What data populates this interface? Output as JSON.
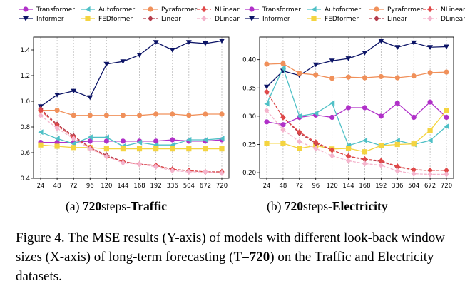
{
  "x_ticks": [
    "24",
    "48",
    "72",
    "96",
    "120",
    "144",
    "168",
    "192",
    "336",
    "504",
    "672",
    "720"
  ],
  "subcaptions": [
    {
      "prefix": "(a)",
      "bold1": "720",
      "mid": "steps-",
      "bold2": "Traffic"
    },
    {
      "prefix": "(b)",
      "bold1": "720",
      "mid": "steps-",
      "bold2": "Electricity"
    }
  ],
  "figure_caption": {
    "part1": "Figure 4. The MSE results (Y-axis) of models with different look-back window sizes (X-axis) of long-term forecasting (T=",
    "bold": "720",
    "part2": ") on the Traffic and Electricity datasets."
  },
  "chart_data": [
    {
      "type": "line",
      "title": "",
      "xlabel": "",
      "ylabel": "",
      "categories": [
        "24",
        "48",
        "72",
        "96",
        "120",
        "144",
        "168",
        "192",
        "336",
        "504",
        "672",
        "720"
      ],
      "ylim": [
        0.4,
        1.5
      ],
      "yticks": [
        "0.4",
        "0.6",
        "0.8",
        "1.0",
        "1.2",
        "1.4"
      ],
      "grid": "vertical dashed",
      "legend": "top",
      "series": [
        {
          "name": "Transformer",
          "color": "#b030c8",
          "marker": "circle",
          "dashed": false,
          "values": [
            0.68,
            0.68,
            0.68,
            0.69,
            0.69,
            0.69,
            0.69,
            0.69,
            0.7,
            0.69,
            0.69,
            0.7
          ]
        },
        {
          "name": "Informer",
          "color": "#0c1466",
          "marker": "triangle-down",
          "dashed": false,
          "values": [
            0.96,
            1.05,
            1.08,
            1.03,
            1.29,
            1.31,
            1.36,
            1.46,
            1.4,
            1.46,
            1.45,
            1.47
          ]
        },
        {
          "name": "Autoformer",
          "color": "#4fc0c6",
          "marker": "triangle-left",
          "dashed": false,
          "values": [
            0.76,
            0.71,
            0.67,
            0.72,
            0.72,
            0.65,
            0.68,
            0.66,
            0.66,
            0.7,
            0.7,
            0.71
          ]
        },
        {
          "name": "FEDformer",
          "color": "#f4d440",
          "marker": "square",
          "dashed": false,
          "values": [
            0.66,
            0.65,
            0.64,
            0.64,
            0.63,
            0.63,
            0.63,
            0.63,
            0.63,
            0.63,
            0.63,
            0.63
          ]
        },
        {
          "name": "Pyraformer",
          "color": "#f0905a",
          "marker": "circle",
          "dashed": false,
          "values": [
            0.93,
            0.93,
            0.89,
            0.89,
            0.89,
            0.89,
            0.89,
            0.9,
            0.9,
            0.89,
            0.9,
            0.9
          ]
        },
        {
          "name": "Linear",
          "color": "#b43c4c",
          "marker": "diamond",
          "dashed": true,
          "values": [
            0.94,
            0.82,
            0.73,
            0.64,
            0.58,
            0.53,
            0.51,
            0.5,
            0.47,
            0.46,
            0.45,
            0.45
          ]
        },
        {
          "name": "NLinear",
          "color": "#e04848",
          "marker": "diamond",
          "dashed": true,
          "values": [
            0.93,
            0.81,
            0.72,
            0.64,
            0.57,
            0.53,
            0.51,
            0.5,
            0.47,
            0.46,
            0.45,
            0.45
          ]
        },
        {
          "name": "DLinear",
          "color": "#f4b4cc",
          "marker": "diamond",
          "dashed": true,
          "values": [
            0.89,
            0.79,
            0.71,
            0.63,
            0.57,
            0.52,
            0.51,
            0.49,
            0.46,
            0.45,
            0.45,
            0.44
          ]
        }
      ]
    },
    {
      "type": "line",
      "title": "",
      "xlabel": "",
      "ylabel": "",
      "categories": [
        "24",
        "48",
        "72",
        "96",
        "120",
        "144",
        "168",
        "192",
        "336",
        "504",
        "672",
        "720"
      ],
      "ylim": [
        0.19,
        0.44
      ],
      "yticks": [
        "0.20",
        "0.25",
        "0.30",
        "0.35",
        "0.40"
      ],
      "grid": "vertical dashed",
      "legend": "top",
      "series": [
        {
          "name": "Transformer",
          "color": "#b030c8",
          "marker": "circle",
          "dashed": false,
          "values": [
            0.29,
            0.285,
            0.298,
            0.302,
            0.298,
            0.315,
            0.315,
            0.3,
            0.323,
            0.298,
            0.325,
            0.298
          ]
        },
        {
          "name": "Informer",
          "color": "#0c1466",
          "marker": "triangle-down",
          "dashed": false,
          "values": [
            0.352,
            0.38,
            0.372,
            0.391,
            0.398,
            0.402,
            0.412,
            0.433,
            0.422,
            0.43,
            0.422,
            0.423
          ]
        },
        {
          "name": "Autoformer",
          "color": "#4fc0c6",
          "marker": "triangle-left",
          "dashed": false,
          "values": [
            0.322,
            0.385,
            0.3,
            0.305,
            0.323,
            0.248,
            0.257,
            0.248,
            0.257,
            0.25,
            0.257,
            0.282
          ]
        },
        {
          "name": "FEDformer",
          "color": "#f4d440",
          "marker": "square",
          "dashed": false,
          "values": [
            0.252,
            0.252,
            0.243,
            0.248,
            0.242,
            0.243,
            0.237,
            0.248,
            0.25,
            0.251,
            0.275,
            0.31
          ]
        },
        {
          "name": "Pyraformer",
          "color": "#f0905a",
          "marker": "circle",
          "dashed": false,
          "values": [
            0.392,
            0.393,
            0.376,
            0.373,
            0.367,
            0.369,
            0.368,
            0.37,
            0.368,
            0.371,
            0.377,
            0.378
          ]
        },
        {
          "name": "Linear",
          "color": "#b43c4c",
          "marker": "diamond",
          "dashed": true,
          "values": [
            0.343,
            0.298,
            0.27,
            0.252,
            0.24,
            0.229,
            0.223,
            0.22,
            0.21,
            0.205,
            0.204,
            0.204
          ]
        },
        {
          "name": "NLinear",
          "color": "#e04848",
          "marker": "diamond",
          "dashed": true,
          "values": [
            0.343,
            0.298,
            0.272,
            0.254,
            0.24,
            0.229,
            0.224,
            0.221,
            0.211,
            0.205,
            0.204,
            0.204
          ]
        },
        {
          "name": "DLinear",
          "color": "#f4b4cc",
          "marker": "diamond",
          "dashed": true,
          "values": [
            0.31,
            0.276,
            0.255,
            0.243,
            0.23,
            0.221,
            0.216,
            0.213,
            0.203,
            0.198,
            0.197,
            0.197
          ]
        }
      ]
    }
  ]
}
